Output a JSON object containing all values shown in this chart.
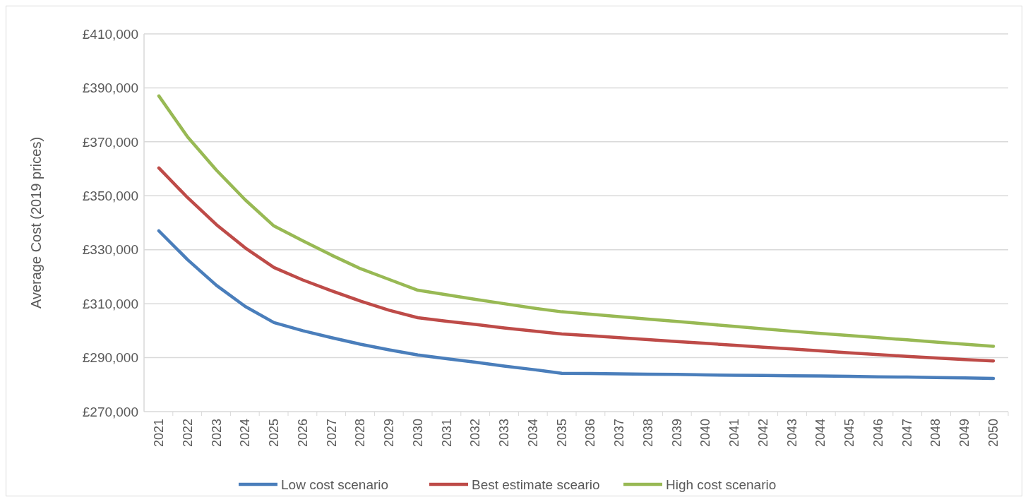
{
  "chart_data": {
    "type": "line",
    "ylabel": "Average Cost (2019 prices)",
    "categories": [
      "2021",
      "2022",
      "2023",
      "2024",
      "2025",
      "2026",
      "2027",
      "2028",
      "2029",
      "2030",
      "2031",
      "2032",
      "2033",
      "2034",
      "2035",
      "2036",
      "2037",
      "2038",
      "2039",
      "2040",
      "2041",
      "2042",
      "2043",
      "2044",
      "2045",
      "2046",
      "2047",
      "2048",
      "2049",
      "2050"
    ],
    "series": [
      {
        "name": "Low cost scenario",
        "color": "#4a7ebb",
        "values": [
          337000,
          326300,
          316800,
          309000,
          303000,
          300000,
          297400,
          295000,
          292900,
          291000,
          289600,
          288300,
          286900,
          285600,
          284200,
          284100,
          284000,
          283900,
          283800,
          283600,
          283500,
          283400,
          283300,
          283200,
          283100,
          282900,
          282800,
          282600,
          282500,
          282300
        ]
      },
      {
        "name": "Best estimate sceario",
        "color": "#be4b48",
        "values": [
          360300,
          349300,
          339300,
          330700,
          323400,
          318800,
          314800,
          311000,
          307600,
          304800,
          303500,
          302300,
          301000,
          299900,
          298800,
          298100,
          297400,
          296700,
          296000,
          295300,
          294600,
          293900,
          293200,
          292500,
          291800,
          291100,
          290500,
          289900,
          289300,
          288800
        ]
      },
      {
        "name": "High cost scenario",
        "color": "#98b954",
        "values": [
          387000,
          371800,
          359500,
          348500,
          338800,
          333300,
          328000,
          323000,
          319000,
          315000,
          313300,
          311600,
          310000,
          308400,
          307000,
          306100,
          305200,
          304300,
          303400,
          302500,
          301600,
          300700,
          299800,
          299000,
          298200,
          297400,
          296600,
          295800,
          295000,
          294200
        ]
      }
    ],
    "ylim": [
      270000,
      410000
    ],
    "yticks": [
      {
        "value": 270000,
        "label": "£270,000"
      },
      {
        "value": 290000,
        "label": "£290,000"
      },
      {
        "value": 310000,
        "label": "£310,000"
      },
      {
        "value": 330000,
        "label": "£330,000"
      },
      {
        "value": 350000,
        "label": "£350,000"
      },
      {
        "value": 370000,
        "label": "£370,000"
      },
      {
        "value": 390000,
        "label": "£390,000"
      },
      {
        "value": 410000,
        "label": "£410,000"
      }
    ],
    "grid": "y",
    "legend": "bottom",
    "line_style": "solid",
    "marker": "none"
  }
}
